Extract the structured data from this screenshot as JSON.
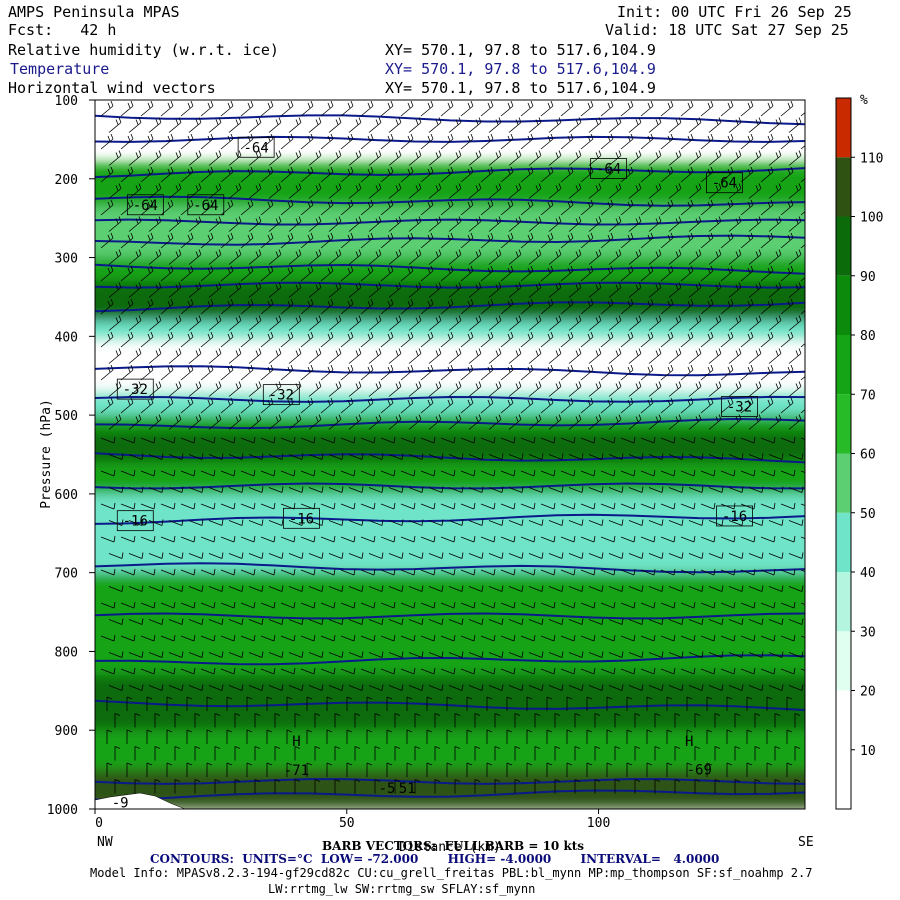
{
  "header": {
    "title": "AMPS Peninsula MPAS",
    "forecast": "Fcst:   42 h",
    "init": "Init: 00 UTC Fri 26 Sep 25",
    "valid": "Valid: 18 UTC Sat 27 Sep 25",
    "field1": "Relative humidity (w.r.t. ice)",
    "field2": "Temperature",
    "field3": "Horizontal wind vectors",
    "xy": "XY= 570.1, 97.8 to 517.6,104.9"
  },
  "footer": {
    "barb": "BARB VECTORS:  FULL BARB = 10 kts",
    "contours": "CONTOURS:  UNITS=°C  LOW= -72.000       HIGH= -4.0000       INTERVAL=   4.0000",
    "model1": "Model Info: MPASv8.2.3-194-gf29cd82c CU:cu_grell_freitas PBL:bl_mynn MP:mp_thompson SF:sf_noahmp 2.7",
    "model2": "LW:rrtmg_lw SW:rrtmg_sw SFLAY:sf_mynn"
  },
  "chart_data": {
    "type": "heatmap",
    "ylabel": "Pressure (hPa)",
    "xlabel": "Distance (km)",
    "x_ticks": [
      "0",
      "50",
      "100"
    ],
    "xlim": [
      0,
      141
    ],
    "y_ticks": [
      "100",
      "200",
      "300",
      "400",
      "500",
      "600",
      "700",
      "800",
      "900",
      "1000"
    ],
    "ylim": [
      1000,
      100
    ],
    "endpoint_labels": [
      "NW",
      "SE"
    ],
    "colorbar": {
      "unit": "%",
      "ticks": [
        "10",
        "20",
        "30",
        "40",
        "50",
        "60",
        "70",
        "80",
        "90",
        "100",
        "110"
      ],
      "colors": [
        "#ffffff",
        "#ffffff",
        "#e0fff0",
        "#b4f5e0",
        "#70e4c8",
        "#5ccf73",
        "#27bb27",
        "#15a415",
        "#0b8a0b",
        "#0b6b0b",
        "#2f5212",
        "#c92a00"
      ]
    },
    "rh_layers": [
      {
        "p_top": 180,
        "p_bot": 235,
        "rh": 75
      },
      {
        "p_top": 235,
        "p_bot": 300,
        "rh": 55
      },
      {
        "p_top": 300,
        "p_bot": 350,
        "rh": 70
      },
      {
        "p_top": 330,
        "p_bot": 380,
        "rh": 95
      },
      {
        "p_top": 380,
        "p_bot": 405,
        "rh": 45
      },
      {
        "p_top": 405,
        "p_bot": 470,
        "rh": 15
      },
      {
        "p_top": 470,
        "p_bot": 500,
        "rh": 45
      },
      {
        "p_top": 500,
        "p_bot": 600,
        "rh": 75
      },
      {
        "p_top": 520,
        "p_bot": 560,
        "rh": 90
      },
      {
        "p_top": 600,
        "p_bot": 700,
        "rh": 45
      },
      {
        "p_top": 700,
        "p_bot": 830,
        "rh": 75
      },
      {
        "p_top": 830,
        "p_bot": 900,
        "rh": 95
      },
      {
        "p_top": 900,
        "p_bot": 950,
        "rh": 70
      },
      {
        "p_top": 950,
        "p_bot": 1000,
        "rh": 100
      }
    ],
    "temperature_contour_labels": [
      {
        "x": 32,
        "p": 160,
        "text": "-64"
      },
      {
        "x": 102,
        "p": 187,
        "text": "-64"
      },
      {
        "x": 125,
        "p": 205,
        "text": "-64"
      },
      {
        "x": 10,
        "p": 233,
        "text": "-64"
      },
      {
        "x": 22,
        "p": 233,
        "text": "-64"
      },
      {
        "x": 8,
        "p": 467,
        "text": "-32"
      },
      {
        "x": 37,
        "p": 474,
        "text": "-32"
      },
      {
        "x": 128,
        "p": 489,
        "text": "-32"
      },
      {
        "x": 8,
        "p": 634,
        "text": "-16"
      },
      {
        "x": 41,
        "p": 631,
        "text": "-16"
      },
      {
        "x": 127,
        "p": 628,
        "text": "-16"
      }
    ],
    "interior_labels": [
      {
        "x": 40,
        "p": 920,
        "text": "H"
      },
      {
        "x": 118,
        "p": 920,
        "text": "H"
      },
      {
        "x": 40,
        "p": 957,
        "text": "-71"
      },
      {
        "x": 120,
        "p": 956,
        "text": "-69"
      },
      {
        "x": 58,
        "p": 980,
        "text": "-5"
      },
      {
        "x": 62,
        "p": 980,
        "text": "51"
      },
      {
        "x": 5,
        "p": 998,
        "text": "-9"
      }
    ],
    "temperature_lines_p": [
      120,
      150,
      195,
      225,
      255,
      282,
      310,
      335,
      365,
      440,
      480,
      515,
      550,
      590,
      635,
      690,
      755,
      815,
      865,
      965,
      985
    ]
  }
}
